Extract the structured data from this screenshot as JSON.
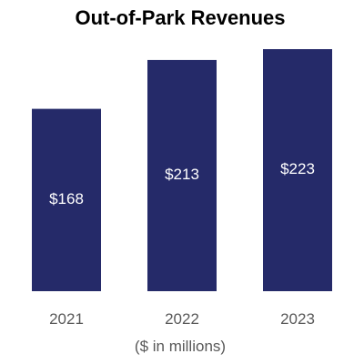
{
  "chart_data": {
    "type": "bar",
    "title": "Out-of-Park Revenues",
    "categories": [
      "2021",
      "2022",
      "2023"
    ],
    "values": [
      168,
      213,
      223
    ],
    "data_labels": [
      "$168",
      "$213",
      "$223"
    ],
    "xlabel": "($ in millions)",
    "ylabel": "",
    "ylim": [
      0,
      223
    ],
    "grid": false,
    "legend": "none",
    "colors": {
      "bar": "#252a69",
      "bar_label": "#ffffff",
      "tick_label": "#595959",
      "title": "#000000"
    }
  }
}
